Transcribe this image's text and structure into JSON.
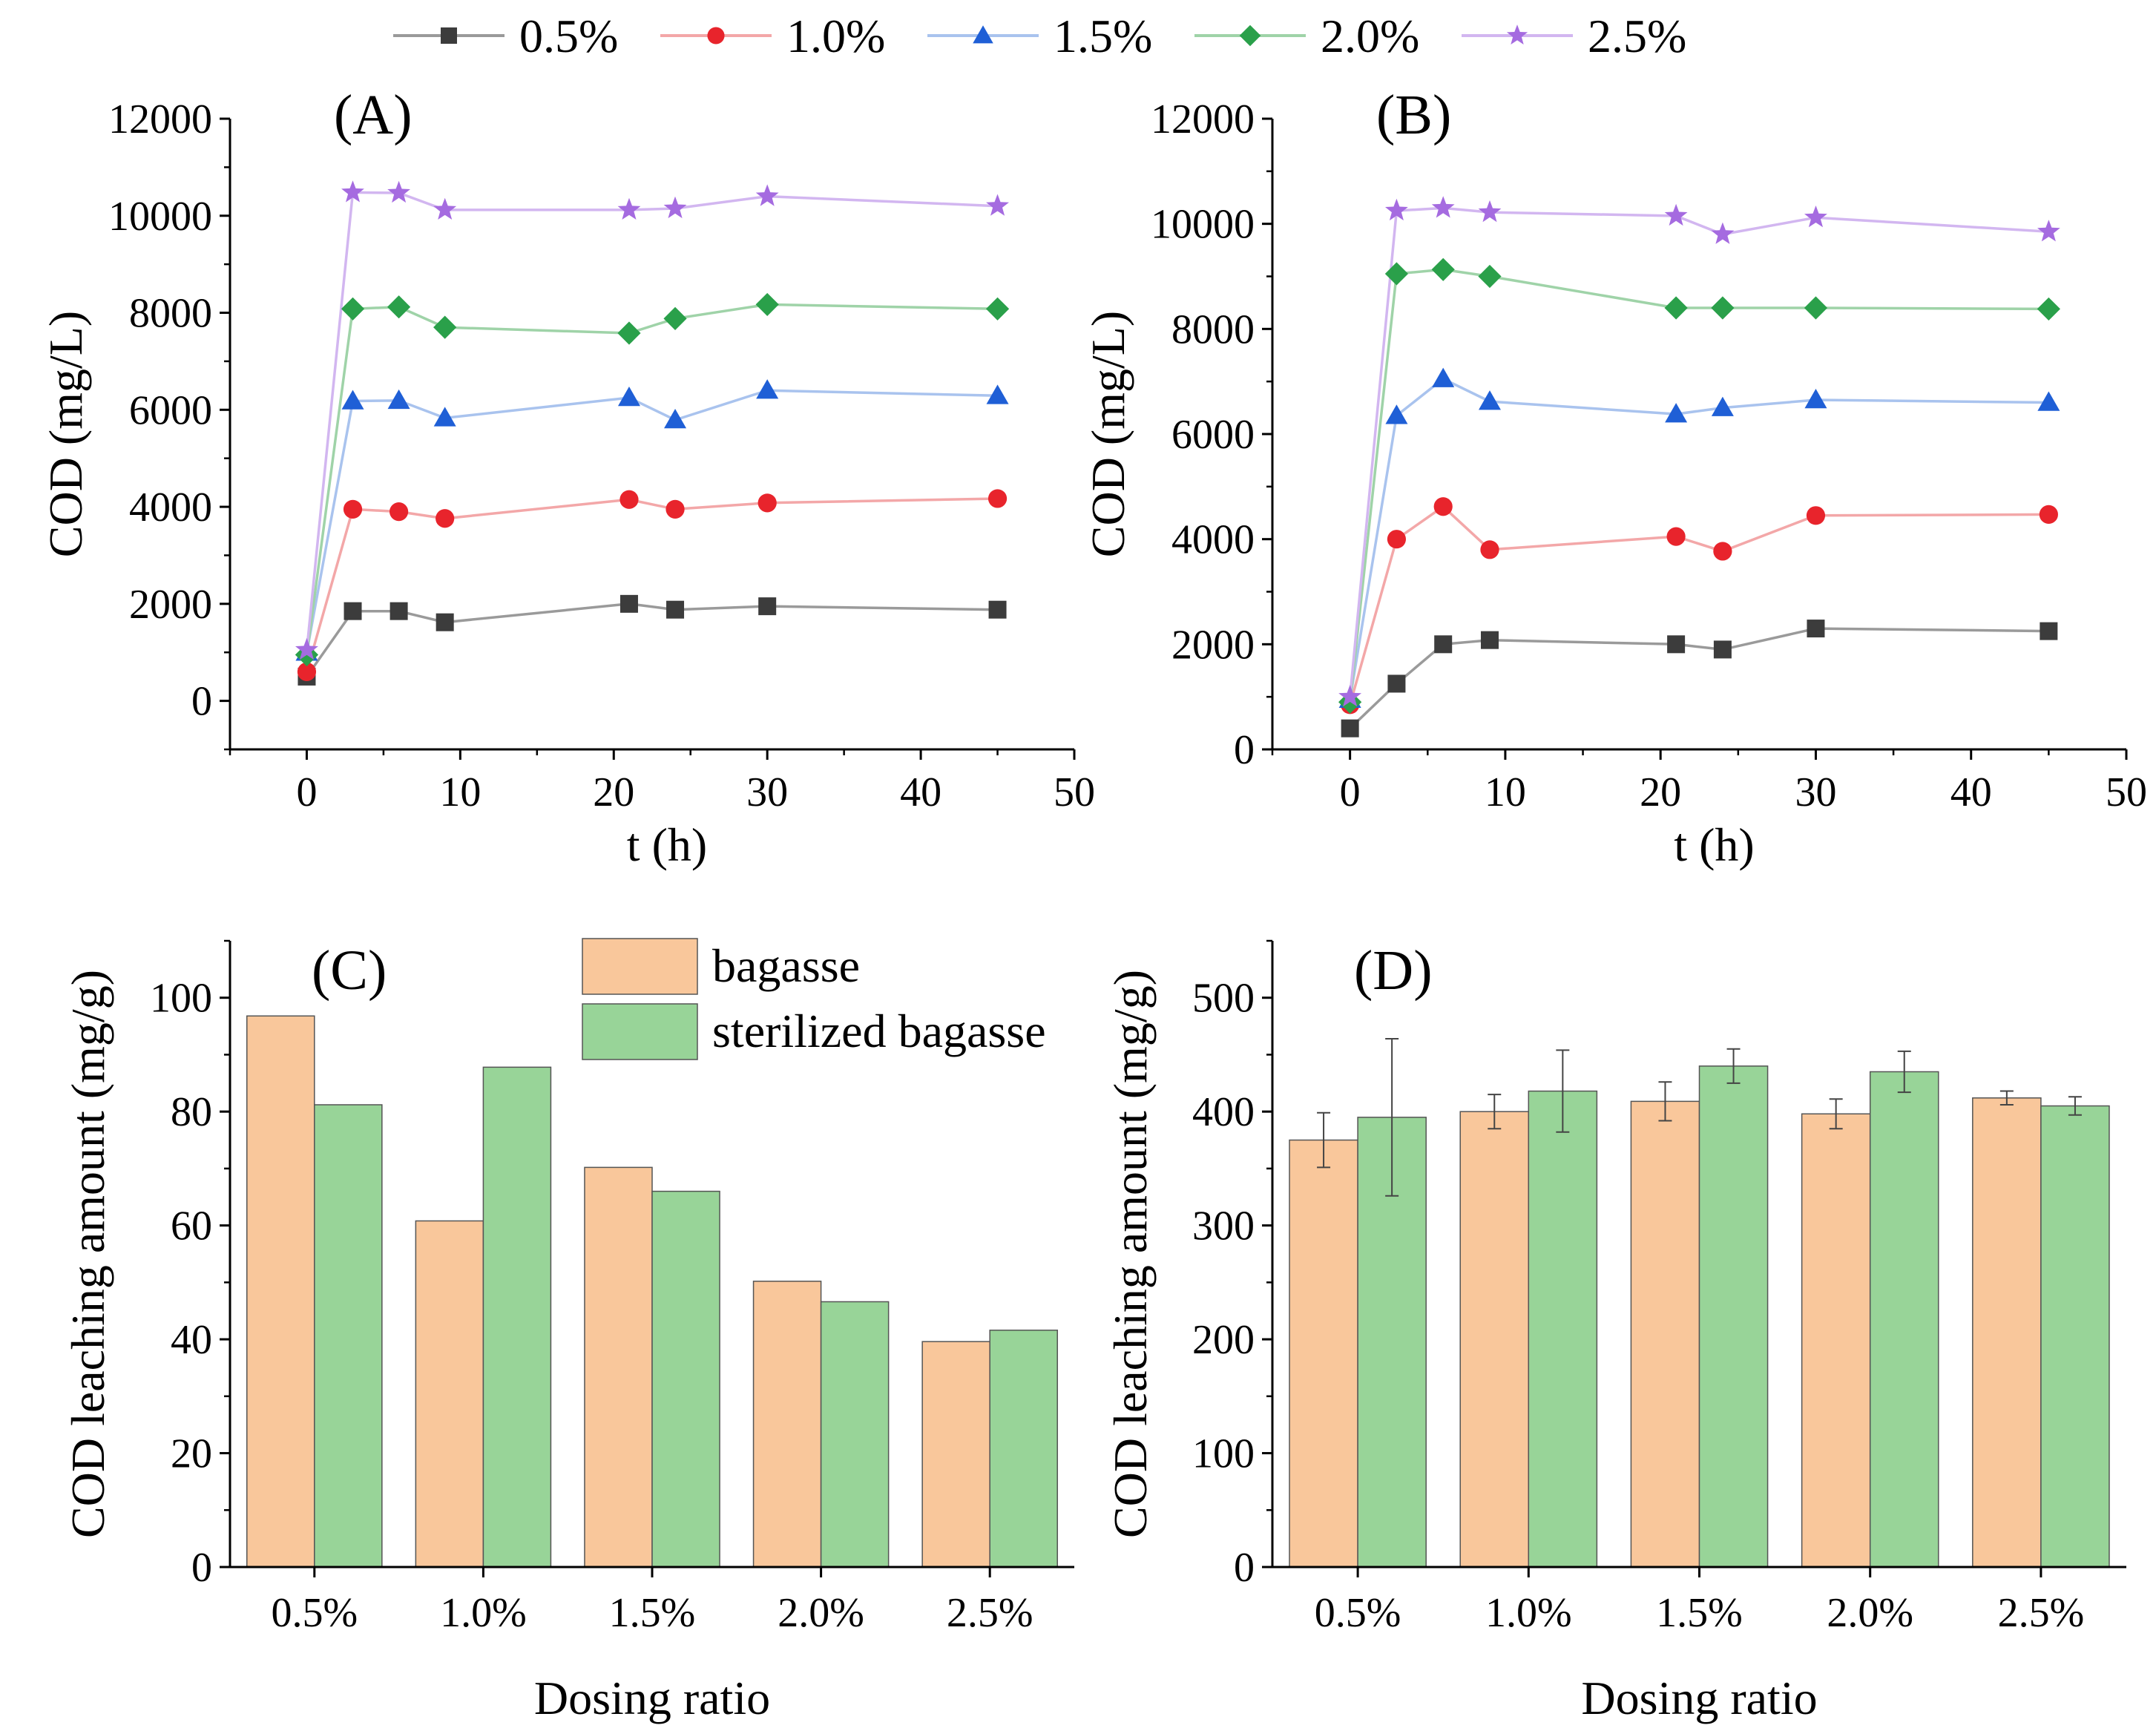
{
  "legend": {
    "series_labels": [
      "0.5%",
      "1.0%",
      "1.5%",
      "2.0%",
      "2.5%"
    ],
    "bar_labels": [
      "bagasse",
      "sterilized bagasse"
    ]
  },
  "colors": {
    "s05": "#3c3c3c",
    "s05_line": "#9a9a9a",
    "s10": "#e8242c",
    "s10_line": "#f3a7a8",
    "s15": "#1f5fd6",
    "s15_line": "#a9c3ee",
    "s20": "#2aa04a",
    "s20_line": "#9fd3a8",
    "s25": "#a56be0",
    "s25_line": "#d2b6f0",
    "bagasse": "#f9c79b",
    "sterilized": "#98d498",
    "bar_edge": "#555555"
  },
  "chart_data": [
    {
      "panel": "(A)",
      "type": "line",
      "xlabel": "t (h)",
      "ylabel": "COD (mg/L)",
      "xlim": [
        -5,
        50
      ],
      "ylim": [
        -1000,
        12000
      ],
      "xticks": [
        0,
        10,
        20,
        30,
        40,
        50
      ],
      "yticks": [
        0,
        2000,
        4000,
        6000,
        8000,
        10000,
        12000
      ],
      "x": [
        0,
        3,
        6,
        9,
        21,
        24,
        30,
        45
      ],
      "series": [
        {
          "name": "0.5%",
          "marker": "square",
          "values": [
            500,
            1850,
            1850,
            1620,
            2000,
            1880,
            1950,
            1880
          ]
        },
        {
          "name": "1.0%",
          "marker": "circle",
          "values": [
            600,
            3950,
            3900,
            3760,
            4150,
            3950,
            4080,
            4170
          ]
        },
        {
          "name": "1.5%",
          "marker": "triangle",
          "values": [
            1000,
            6180,
            6190,
            5830,
            6250,
            5790,
            6400,
            6290
          ]
        },
        {
          "name": "2.0%",
          "marker": "diamond",
          "values": [
            950,
            8080,
            8120,
            7700,
            7580,
            7880,
            8170,
            8080
          ]
        },
        {
          "name": "2.5%",
          "marker": "star",
          "values": [
            1050,
            10480,
            10470,
            10120,
            10120,
            10150,
            10400,
            10200
          ]
        }
      ]
    },
    {
      "panel": "(B)",
      "type": "line",
      "xlabel": "t (h)",
      "ylabel": "COD (mg/L)",
      "xlim": [
        -5,
        50
      ],
      "ylim": [
        0,
        12000
      ],
      "xticks": [
        0,
        10,
        20,
        30,
        40,
        50
      ],
      "yticks": [
        0,
        2000,
        4000,
        6000,
        8000,
        10000,
        12000
      ],
      "x": [
        0,
        3,
        6,
        9,
        21,
        24,
        30,
        45
      ],
      "series": [
        {
          "name": "0.5%",
          "marker": "square",
          "values": [
            400,
            1250,
            2000,
            2080,
            2000,
            1900,
            2300,
            2250
          ]
        },
        {
          "name": "1.0%",
          "marker": "circle",
          "values": [
            850,
            4000,
            4620,
            3800,
            4050,
            3770,
            4450,
            4470
          ]
        },
        {
          "name": "1.5%",
          "marker": "triangle",
          "values": [
            950,
            6350,
            7050,
            6620,
            6380,
            6500,
            6650,
            6600
          ]
        },
        {
          "name": "2.0%",
          "marker": "diamond",
          "values": [
            900,
            9050,
            9130,
            9000,
            8400,
            8400,
            8400,
            8380
          ]
        },
        {
          "name": "2.5%",
          "marker": "star",
          "values": [
            1000,
            10250,
            10300,
            10220,
            10150,
            9800,
            10120,
            9850
          ]
        }
      ]
    },
    {
      "panel": "(C)",
      "type": "bar",
      "xlabel": "Dosing ratio",
      "ylabel": "COD leaching amount (mg/g)",
      "ylim": [
        0,
        110
      ],
      "yticks": [
        0,
        20,
        40,
        60,
        80,
        100
      ],
      "categories": [
        "0.5%",
        "1.0%",
        "1.5%",
        "2.0%",
        "2.5%"
      ],
      "series": [
        {
          "name": "bagasse",
          "values": [
            96.8,
            60.8,
            70.2,
            50.2,
            39.6
          ]
        },
        {
          "name": "sterilized bagasse",
          "values": [
            81.2,
            87.8,
            66.0,
            46.6,
            41.6
          ]
        }
      ]
    },
    {
      "panel": "(D)",
      "type": "bar",
      "xlabel": "Dosing ratio",
      "ylabel": "COD leaching amount (mg/g)",
      "ylim": [
        0,
        550
      ],
      "yticks": [
        0,
        100,
        200,
        300,
        400,
        500
      ],
      "categories": [
        "0.5%",
        "1.0%",
        "1.5%",
        "2.0%",
        "2.5%"
      ],
      "series": [
        {
          "name": "bagasse",
          "values": [
            375,
            400,
            409,
            398,
            412
          ],
          "errors": [
            24,
            15,
            17,
            13,
            6
          ]
        },
        {
          "name": "sterilized bagasse",
          "values": [
            395,
            418,
            440,
            435,
            405
          ],
          "errors": [
            69,
            36,
            15,
            18,
            8
          ]
        }
      ]
    }
  ]
}
